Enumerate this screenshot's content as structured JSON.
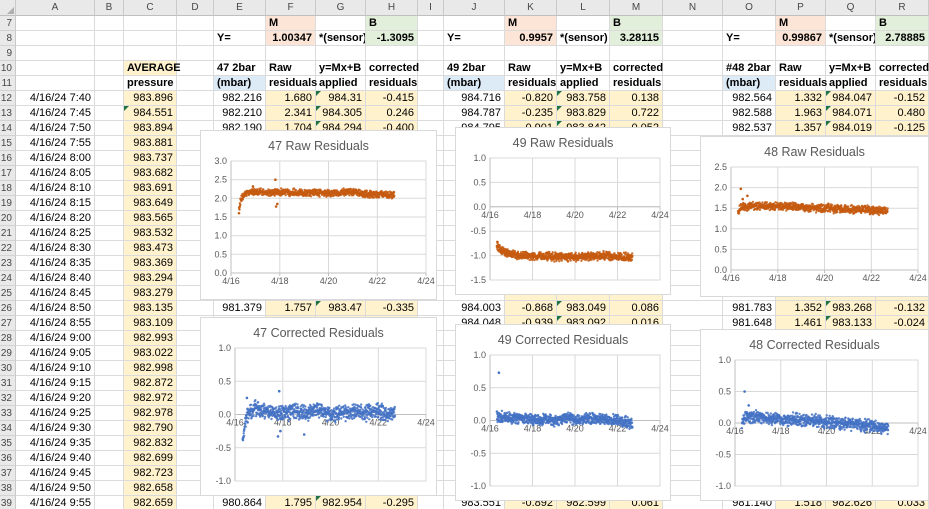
{
  "sheet": {
    "column_letters": [
      "A",
      "B",
      "C",
      "D",
      "E",
      "F",
      "G",
      "H",
      "I",
      "J",
      "K",
      "L",
      "M",
      "N",
      "O",
      "P",
      "Q",
      "R"
    ],
    "row_numbers": {
      "first": 7,
      "last": 39
    },
    "avg_header": {
      "line1": "AVERAGE",
      "line2": "pressure"
    },
    "shared_headers": {
      "raw1": "Raw",
      "raw2": "residuals",
      "applied1": "y=Mx+B",
      "applied2": "applied",
      "corrected1": "corrected",
      "corrected2": "residuals"
    },
    "formula_labels": {
      "y": "Y=",
      "m": "M",
      "b": "B",
      "mid": "*(sensor) +"
    },
    "groups": [
      {
        "sensor_h1": "47 2bar",
        "sensor_h2": "(mbar)",
        "m_value": "1.00347",
        "b_value": "-1.3095"
      },
      {
        "sensor_h1": "49 2bar",
        "sensor_h2": "(mbar)",
        "m_value": "0.9957",
        "b_value": "3.28115"
      },
      {
        "sensor_h1": "#48 2bar",
        "sensor_h2": "(mbar)",
        "m_value": "0.99867",
        "b_value": "2.78885"
      }
    ],
    "rows": [
      {
        "r": "12",
        "a": "4/16/24 7:40",
        "c": "983.896",
        "g1": [
          "982.216",
          "1.680",
          "984.31",
          "-0.415"
        ],
        "g2": [
          "984.716",
          "-0.820",
          "983.758",
          "0.138"
        ],
        "g3": [
          "982.564",
          "1.332",
          "984.047",
          "-0.152"
        ]
      },
      {
        "r": "13",
        "a": "4/16/24 7:45",
        "c": "984.551",
        "ctri": true,
        "g1": [
          "982.210",
          "2.341",
          "984.305",
          "0.246"
        ],
        "g2": [
          "984.787",
          "-0.235",
          "983.829",
          "0.722"
        ],
        "g3": [
          "982.588",
          "1.963",
          "984.071",
          "0.480"
        ]
      },
      {
        "r": "14",
        "a": "4/16/24 7:50",
        "c": "983.894",
        "g1": [
          "982.190",
          "1.704",
          "984.294",
          "-0.400"
        ],
        "g2": [
          "984.795",
          "-0.901",
          "983.842",
          "0.052"
        ],
        "g3": [
          "982.537",
          "1.357",
          "984.019",
          "-0.125"
        ]
      },
      {
        "r": "15",
        "a": "4/16/24 7:55",
        "c": "983.881"
      },
      {
        "r": "16",
        "a": "4/16/24 8:00",
        "c": "983.737"
      },
      {
        "r": "17",
        "a": "4/16/24 8:05",
        "c": "983.682"
      },
      {
        "r": "18",
        "a": "4/16/24 8:10",
        "c": "983.691"
      },
      {
        "r": "19",
        "a": "4/16/24 8:15",
        "c": "983.649"
      },
      {
        "r": "20",
        "a": "4/16/24 8:20",
        "c": "983.565"
      },
      {
        "r": "21",
        "a": "4/16/24 8:25",
        "c": "983.532"
      },
      {
        "r": "22",
        "a": "4/16/24 8:30",
        "c": "983.473"
      },
      {
        "r": "23",
        "a": "4/16/24 8:35",
        "c": "983.369"
      },
      {
        "r": "24",
        "a": "4/16/24 8:40",
        "c": "983.294"
      },
      {
        "r": "25",
        "a": "4/16/24 8:45",
        "c": "983.279"
      },
      {
        "r": "26",
        "a": "4/16/24 8:50",
        "c": "983.135",
        "g1": [
          "981.379",
          "1.757",
          "983.47",
          "-0.335"
        ],
        "g2": [
          "984.003",
          "-0.868",
          "983.049",
          "0.086"
        ],
        "g3": [
          "981.783",
          "1.352",
          "983.268",
          "-0.132"
        ]
      },
      {
        "r": "27",
        "a": "4/16/24 8:55",
        "c": "983.109",
        "g2": [
          "984.048",
          "-0.939",
          "983.092",
          "0.016"
        ],
        "g3": [
          "981.648",
          "1.461",
          "983.133",
          "-0.024"
        ]
      },
      {
        "r": "28",
        "a": "4/16/24 9:00",
        "c": "982.993"
      },
      {
        "r": "29",
        "a": "4/16/24 9:05",
        "c": "983.022"
      },
      {
        "r": "30",
        "a": "4/16/24 9:10",
        "c": "982.998"
      },
      {
        "r": "31",
        "a": "4/16/24 9:15",
        "c": "982.872"
      },
      {
        "r": "32",
        "a": "4/16/24 9:20",
        "c": "982.972"
      },
      {
        "r": "33",
        "a": "4/16/24 9:25",
        "c": "982.978"
      },
      {
        "r": "34",
        "a": "4/16/24 9:30",
        "c": "982.790"
      },
      {
        "r": "35",
        "a": "4/16/24 9:35",
        "c": "982.832"
      },
      {
        "r": "36",
        "a": "4/16/24 9:40",
        "c": "982.699"
      },
      {
        "r": "37",
        "a": "4/16/24 9:45",
        "c": "982.723"
      },
      {
        "r": "38",
        "a": "4/16/24 9:50",
        "c": "982.658"
      },
      {
        "r": "39",
        "a": "4/16/24 9:55",
        "c": "982.659",
        "g1": [
          "980.864",
          "1.795",
          "982.954",
          "-0.295"
        ],
        "g2": [
          "983.551",
          "-0.892",
          "982.599",
          "0.061"
        ],
        "g3": [
          "981.140",
          "1.518",
          "982.626",
          "0.033"
        ]
      }
    ],
    "colors": {
      "fill_cream": "#FFF2CC",
      "fill_blue": "#DDEBF7",
      "fill_peach": "#FCE4D6",
      "fill_green": "#E2EFDA",
      "error_triangle": "#217346",
      "raw_series": "#C55A11",
      "corrected_series": "#4472C4"
    }
  },
  "chart_data": [
    {
      "type": "scatter",
      "title": "47 Raw Residuals",
      "color": "#C55A11",
      "x_axis": {
        "tick_labels": [
          "4/16",
          "4/18",
          "4/20",
          "4/22",
          "4/24"
        ],
        "tick_days": [
          16,
          18,
          20,
          22,
          24
        ],
        "range_days": [
          16,
          24
        ],
        "labels_at_zero": false
      },
      "y_axis": {
        "min": 0.0,
        "max": 3.0,
        "step": 0.5
      },
      "series": {
        "x_start": 16.32,
        "x_end": 22.7,
        "n": 850,
        "noise": 0.055,
        "trend": [
          [
            16.32,
            1.63
          ],
          [
            16.4,
            1.95
          ],
          [
            16.55,
            2.1
          ],
          [
            16.8,
            2.18
          ],
          [
            17.5,
            2.15
          ],
          [
            18,
            2.17
          ],
          [
            19,
            2.16
          ],
          [
            20,
            2.13
          ],
          [
            20.8,
            2.17
          ],
          [
            21.5,
            2.12
          ],
          [
            22,
            2.1
          ],
          [
            22.7,
            2.09
          ]
        ],
        "outliers": [
          [
            17.82,
            2.5
          ],
          [
            17.85,
            1.78
          ],
          [
            17.9,
            1.85
          ],
          [
            16.9,
            2.32
          ]
        ]
      }
    },
    {
      "type": "scatter",
      "title": "49 Raw Residuals",
      "color": "#C55A11",
      "x_axis": {
        "tick_labels": [
          "4/16",
          "4/18",
          "4/20",
          "4/22",
          "4/24"
        ],
        "tick_days": [
          16,
          18,
          20,
          22,
          24
        ],
        "range_days": [
          16,
          24
        ],
        "labels_at_zero": true
      },
      "y_axis": {
        "min": -1.5,
        "max": 1.0,
        "step": 0.5
      },
      "series": {
        "x_start": 16.32,
        "x_end": 22.7,
        "n": 850,
        "noise": 0.05,
        "trend": [
          [
            16.32,
            -0.78
          ],
          [
            16.5,
            -0.9
          ],
          [
            17,
            -0.97
          ],
          [
            17.5,
            -1.0
          ],
          [
            18.5,
            -1.02
          ],
          [
            19.5,
            -1.04
          ],
          [
            20.5,
            -1.02
          ],
          [
            21.5,
            -1.0
          ],
          [
            22.2,
            -1.03
          ],
          [
            22.7,
            -1.04
          ]
        ],
        "outliers": [
          [
            16.35,
            -0.72
          ]
        ]
      }
    },
    {
      "type": "scatter",
      "title": "48 Raw Residuals",
      "color": "#C55A11",
      "x_axis": {
        "tick_labels": [
          "4/16",
          "4/18",
          "4/20",
          "4/22",
          "4/24"
        ],
        "tick_days": [
          16,
          18,
          20,
          22,
          24
        ],
        "range_days": [
          16,
          24
        ],
        "labels_at_zero": false
      },
      "y_axis": {
        "min": 0.0,
        "max": 2.5,
        "step": 0.5
      },
      "series": {
        "x_start": 16.3,
        "x_end": 22.7,
        "n": 850,
        "noise": 0.06,
        "trend": [
          [
            16.3,
            1.42
          ],
          [
            16.45,
            1.52
          ],
          [
            17,
            1.55
          ],
          [
            18,
            1.54
          ],
          [
            19,
            1.52
          ],
          [
            20,
            1.5
          ],
          [
            21,
            1.47
          ],
          [
            22,
            1.45
          ],
          [
            22.7,
            1.42
          ]
        ],
        "outliers": [
          [
            16.42,
            1.97
          ],
          [
            16.7,
            1.8
          ],
          [
            16.5,
            1.72
          ]
        ]
      }
    },
    {
      "type": "scatter",
      "title": "47 Corrected Residuals",
      "color": "#4472C4",
      "x_axis": {
        "tick_labels": [
          "4/16",
          "4/18",
          "4/20",
          "4/22",
          "4/24"
        ],
        "tick_days": [
          16,
          18,
          20,
          22,
          24
        ],
        "range_days": [
          16,
          24
        ],
        "labels_at_zero": true
      },
      "y_axis": {
        "min": -1.0,
        "max": 1.0,
        "step": 0.5
      },
      "series": {
        "x_start": 16.32,
        "x_end": 22.7,
        "n": 850,
        "noise": 0.07,
        "trend": [
          [
            16.32,
            -0.43
          ],
          [
            16.45,
            -0.1
          ],
          [
            16.6,
            0.05
          ],
          [
            16.8,
            0.1
          ],
          [
            17.5,
            0.03
          ],
          [
            18,
            0.02
          ],
          [
            18.5,
            0.05
          ],
          [
            19,
            0.03
          ],
          [
            19.5,
            0.06
          ],
          [
            20,
            0.0
          ],
          [
            20.5,
            0.02
          ],
          [
            21,
            0.06
          ],
          [
            21.5,
            0.02
          ],
          [
            22,
            0.05
          ],
          [
            22.35,
            0.0
          ],
          [
            22.7,
            0.03
          ]
        ],
        "outliers": [
          [
            17.8,
            -0.33
          ],
          [
            17.85,
            0.35
          ],
          [
            17.9,
            -0.25
          ],
          [
            18.9,
            -0.3
          ],
          [
            16.5,
            0.25
          ]
        ]
      }
    },
    {
      "type": "scatter",
      "title": "49 Corrected Residuals",
      "color": "#4472C4",
      "x_axis": {
        "tick_labels": [
          "4/16",
          "4/18",
          "4/20",
          "4/22",
          "4/24"
        ],
        "tick_days": [
          16,
          18,
          20,
          22,
          24
        ],
        "range_days": [
          16,
          24
        ],
        "labels_at_zero": true
      },
      "y_axis": {
        "min": -1.0,
        "max": 1.0,
        "step": 0.5
      },
      "series": {
        "x_start": 16.32,
        "x_end": 22.7,
        "n": 850,
        "noise": 0.05,
        "trend": [
          [
            16.32,
            0.07
          ],
          [
            16.6,
            0.05
          ],
          [
            17,
            0.04
          ],
          [
            18,
            0.02
          ],
          [
            19,
            0.0
          ],
          [
            19.5,
            0.03
          ],
          [
            20,
            0.02
          ],
          [
            21,
            0.03
          ],
          [
            21.8,
            0.02
          ],
          [
            22.3,
            -0.02
          ],
          [
            22.7,
            -0.05
          ]
        ],
        "outliers": [
          [
            16.42,
            0.73
          ]
        ]
      }
    },
    {
      "type": "scatter",
      "title": "48 Corrected Residuals",
      "color": "#4472C4",
      "x_axis": {
        "tick_labels": [
          "4/16",
          "4/18",
          "4/20",
          "4/22",
          "4/24"
        ],
        "tick_days": [
          16,
          18,
          20,
          22,
          24
        ],
        "range_days": [
          16,
          24
        ],
        "labels_at_zero": true
      },
      "y_axis": {
        "min": -1.0,
        "max": 1.0,
        "step": 0.5
      },
      "series": {
        "x_start": 16.3,
        "x_end": 22.7,
        "n": 850,
        "noise": 0.06,
        "trend": [
          [
            16.3,
            0.0
          ],
          [
            16.45,
            0.1
          ],
          [
            17,
            0.1
          ],
          [
            17.5,
            0.07
          ],
          [
            18,
            0.06
          ],
          [
            19,
            0.05
          ],
          [
            19.7,
            0.02
          ],
          [
            20.5,
            0.0
          ],
          [
            21.3,
            -0.02
          ],
          [
            22,
            -0.06
          ],
          [
            22.7,
            -0.1
          ]
        ],
        "outliers": [
          [
            16.42,
            0.5
          ],
          [
            16.6,
            0.28
          ]
        ]
      }
    }
  ]
}
